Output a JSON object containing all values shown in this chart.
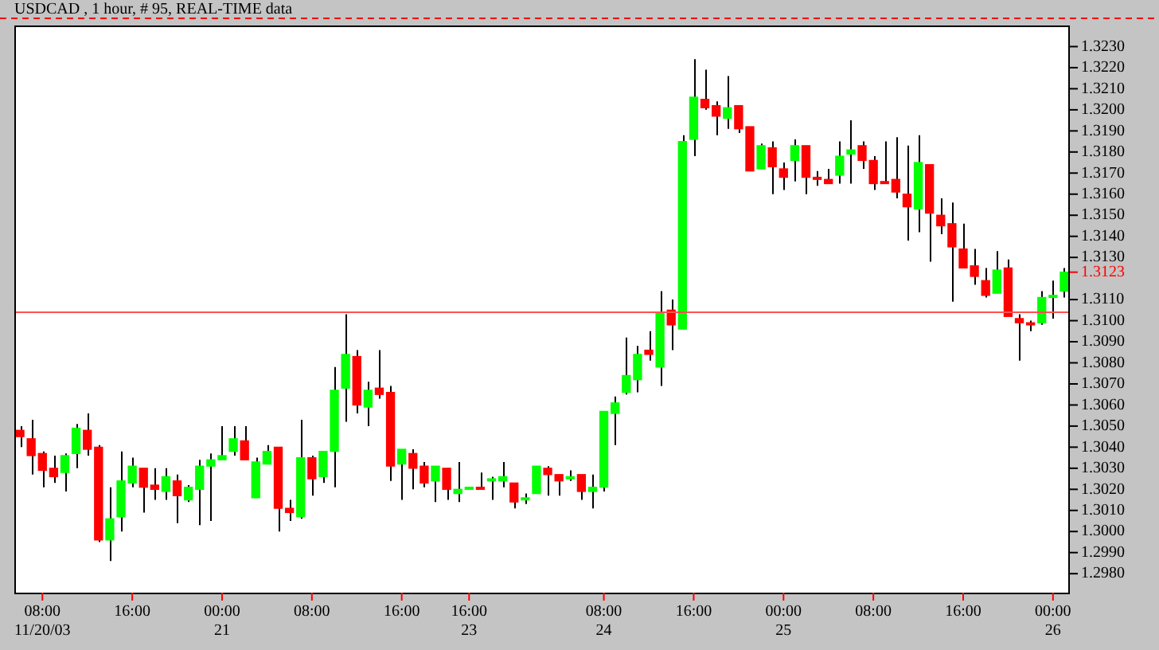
{
  "chart_data": {
    "type": "candlestick",
    "title": "USDCAD , 1 hour, # 95, REAL-TIME data",
    "categories": [
      null,
      null,
      "08:00\n11/20/03",
      null,
      null,
      null,
      null,
      null,
      null,
      null,
      "16:00",
      null,
      null,
      null,
      null,
      null,
      null,
      null,
      "00:00\n21",
      null,
      null,
      null,
      null,
      null,
      null,
      null,
      "08:00",
      null,
      null,
      null,
      null,
      null,
      null,
      null,
      "16:00",
      null,
      null,
      null,
      null,
      null,
      "16:00\n23",
      null,
      null,
      null,
      null,
      null,
      null,
      null,
      null,
      null,
      null,
      null,
      "08:00\n24",
      null,
      null,
      null,
      null,
      null,
      null,
      null,
      "16:00",
      null,
      null,
      null,
      null,
      null,
      null,
      null,
      "00:00\n25",
      null,
      null,
      null,
      null,
      null,
      null,
      null,
      "08:00",
      null,
      null,
      null,
      null,
      null,
      null,
      null,
      "16:00",
      null,
      null,
      null,
      null,
      null,
      null,
      null,
      "00:00\n26",
      null
    ],
    "ohlc": [
      [
        1.3048,
        1.305,
        1.304,
        1.3045
      ],
      [
        1.3044,
        1.3053,
        1.3027,
        1.3036
      ],
      [
        1.3037,
        1.3038,
        1.3021,
        1.3029
      ],
      [
        1.303,
        1.3036,
        1.3023,
        1.3026
      ],
      [
        1.3028,
        1.3037,
        1.3019,
        1.3036
      ],
      [
        1.3037,
        1.3051,
        1.303,
        1.3049
      ],
      [
        1.3048,
        1.3056,
        1.3036,
        1.3039
      ],
      [
        1.304,
        1.3041,
        1.2995,
        1.2996
      ],
      [
        1.2996,
        1.3021,
        1.2986,
        1.3006
      ],
      [
        1.3007,
        1.3038,
        1.3,
        1.3024
      ],
      [
        1.3023,
        1.3035,
        1.3021,
        1.3031
      ],
      [
        1.303,
        1.303,
        1.3009,
        1.3021
      ],
      [
        1.3022,
        1.303,
        1.3015,
        1.302
      ],
      [
        1.3019,
        1.303,
        1.3015,
        1.3026
      ],
      [
        1.3024,
        1.3027,
        1.3004,
        1.3017
      ],
      [
        1.3015,
        1.3022,
        1.3014,
        1.3021
      ],
      [
        1.302,
        1.3034,
        1.3003,
        1.3031
      ],
      [
        1.3031,
        1.3037,
        1.3005,
        1.3034
      ],
      [
        1.3034,
        1.305,
        1.3034,
        1.3036
      ],
      [
        1.3038,
        1.305,
        1.3036,
        1.3044
      ],
      [
        1.3043,
        1.305,
        1.3034,
        1.3034
      ],
      [
        1.3016,
        1.3035,
        1.3016,
        1.3033
      ],
      [
        1.3032,
        1.3041,
        1.3032,
        1.3038
      ],
      [
        1.304,
        1.304,
        1.3,
        1.3011
      ],
      [
        1.3011,
        1.3015,
        1.3005,
        1.3009
      ],
      [
        1.3007,
        1.3053,
        1.3006,
        1.3035
      ],
      [
        1.3035,
        1.3036,
        1.3017,
        1.3025
      ],
      [
        1.3026,
        1.3038,
        1.3023,
        1.3038
      ],
      [
        1.3038,
        1.3078,
        1.3021,
        1.3067
      ],
      [
        1.3068,
        1.3103,
        1.3052,
        1.3084
      ],
      [
        1.3083,
        1.3086,
        1.3056,
        1.306
      ],
      [
        1.3059,
        1.3071,
        1.305,
        1.3067
      ],
      [
        1.3068,
        1.3086,
        1.3063,
        1.3065
      ],
      [
        1.3066,
        1.3069,
        1.3024,
        1.3031
      ],
      [
        1.3032,
        1.3039,
        1.3015,
        1.3039
      ],
      [
        1.3037,
        1.3039,
        1.302,
        1.303
      ],
      [
        1.3031,
        1.3033,
        1.3021,
        1.3023
      ],
      [
        1.3024,
        1.3031,
        1.3014,
        1.3031
      ],
      [
        1.303,
        1.303,
        1.3015,
        1.302
      ],
      [
        1.3018,
        1.3033,
        1.3014,
        1.302
      ],
      [
        1.302,
        1.3021,
        1.302,
        1.3021
      ],
      [
        1.3021,
        1.3028,
        1.302,
        1.302
      ],
      [
        1.3024,
        1.3026,
        1.3015,
        1.3025
      ],
      [
        1.3024,
        1.3033,
        1.3021,
        1.3026
      ],
      [
        1.3023,
        1.3023,
        1.3011,
        1.3014
      ],
      [
        1.3015,
        1.3018,
        1.3013,
        1.3016
      ],
      [
        1.3018,
        1.3031,
        1.3018,
        1.3031
      ],
      [
        1.303,
        1.3031,
        1.3017,
        1.3027
      ],
      [
        1.3027,
        1.3027,
        1.3017,
        1.3024
      ],
      [
        1.3025,
        1.3029,
        1.3024,
        1.3026
      ],
      [
        1.3027,
        1.3027,
        1.3015,
        1.3019
      ],
      [
        1.3019,
        1.3027,
        1.3011,
        1.3021
      ],
      [
        1.3021,
        1.3057,
        1.3019,
        1.3057
      ],
      [
        1.3056,
        1.3064,
        1.3041,
        1.3061
      ],
      [
        1.3066,
        1.3092,
        1.3065,
        1.3074
      ],
      [
        1.3072,
        1.3088,
        1.3066,
        1.3084
      ],
      [
        1.3086,
        1.3095,
        1.3081,
        1.3084
      ],
      [
        1.3078,
        1.3114,
        1.3069,
        1.3104
      ],
      [
        1.3105,
        1.311,
        1.3086,
        1.3098
      ],
      [
        1.3096,
        1.3188,
        1.3096,
        1.3185
      ],
      [
        1.3186,
        1.3224,
        1.3178,
        1.3206
      ],
      [
        1.3205,
        1.3219,
        1.32,
        1.3201
      ],
      [
        1.3202,
        1.3204,
        1.3188,
        1.3197
      ],
      [
        1.3196,
        1.3216,
        1.3191,
        1.3201
      ],
      [
        1.3202,
        1.3202,
        1.3189,
        1.3191
      ],
      [
        1.3192,
        1.3192,
        1.3171,
        1.3171
      ],
      [
        1.3172,
        1.3184,
        1.3172,
        1.3183
      ],
      [
        1.3182,
        1.3185,
        1.316,
        1.3173
      ],
      [
        1.3172,
        1.3175,
        1.3162,
        1.3168
      ],
      [
        1.3176,
        1.3186,
        1.3166,
        1.3183
      ],
      [
        1.3183,
        1.3183,
        1.316,
        1.3168
      ],
      [
        1.3168,
        1.3171,
        1.3164,
        1.3167
      ],
      [
        1.3167,
        1.3172,
        1.3165,
        1.3165
      ],
      [
        1.3169,
        1.3185,
        1.3165,
        1.3178
      ],
      [
        1.3179,
        1.3195,
        1.3165,
        1.3181
      ],
      [
        1.3183,
        1.3185,
        1.3172,
        1.3176
      ],
      [
        1.3176,
        1.3178,
        1.3162,
        1.3165
      ],
      [
        1.3166,
        1.3185,
        1.3165,
        1.3165
      ],
      [
        1.3167,
        1.3187,
        1.3158,
        1.3161
      ],
      [
        1.316,
        1.3183,
        1.3138,
        1.3154
      ],
      [
        1.3153,
        1.3188,
        1.3142,
        1.3175
      ],
      [
        1.3174,
        1.3174,
        1.3128,
        1.3151
      ],
      [
        1.315,
        1.3158,
        1.3141,
        1.3145
      ],
      [
        1.3146,
        1.3156,
        1.3109,
        1.3135
      ],
      [
        1.3134,
        1.3146,
        1.3125,
        1.3125
      ],
      [
        1.3126,
        1.3134,
        1.3117,
        1.3121
      ],
      [
        1.3119,
        1.3125,
        1.3111,
        1.3112
      ],
      [
        1.3113,
        1.3133,
        1.3113,
        1.3124
      ],
      [
        1.3125,
        1.3129,
        1.3102,
        1.3102
      ],
      [
        1.3101,
        1.3103,
        1.3081,
        1.3099
      ],
      [
        1.3099,
        1.31,
        1.3095,
        1.3098
      ],
      [
        1.3099,
        1.3114,
        1.3098,
        1.3111
      ],
      [
        1.3111,
        1.3119,
        1.3101,
        1.3112
      ],
      [
        1.3114,
        1.3125,
        1.3111,
        1.3123
      ]
    ],
    "colors": [
      "#ff0000",
      "#ff0000",
      "#ff0000",
      "#ff0000",
      "#00ff00",
      "#00ff00",
      "#ff0000",
      "#ff0000",
      "#00ff00",
      "#00ff00",
      "#00ff00",
      "#ff0000",
      "#ff0000",
      "#00ff00",
      "#ff0000",
      "#00ff00",
      "#00ff00",
      "#00ff00",
      "#00ff00",
      "#00ff00",
      "#ff0000",
      "#00ff00",
      "#00ff00",
      "#ff0000",
      "#ff0000",
      "#00ff00",
      "#ff0000",
      "#00ff00",
      "#00ff00",
      "#00ff00",
      "#ff0000",
      "#00ff00",
      "#ff0000",
      "#ff0000",
      "#00ff00",
      "#ff0000",
      "#ff0000",
      "#00ff00",
      "#ff0000",
      "#00ff00",
      "#00ff00",
      "#ff0000",
      "#00ff00",
      "#00ff00",
      "#ff0000",
      "#00ff00",
      "#00ff00",
      "#ff0000",
      "#ff0000",
      "#00ff00",
      "#ff0000",
      "#00ff00",
      "#00ff00",
      "#00ff00",
      "#00ff00",
      "#00ff00",
      "#ff0000",
      "#00ff00",
      "#ff0000",
      "#00ff00",
      "#00ff00",
      "#ff0000",
      "#ff0000",
      "#00ff00",
      "#ff0000",
      "#ff0000",
      "#00ff00",
      "#ff0000",
      "#ff0000",
      "#00ff00",
      "#ff0000",
      "#ff0000",
      "#ff0000",
      "#00ff00",
      "#00ff00",
      "#ff0000",
      "#ff0000",
      "#ff0000",
      "#ff0000",
      "#ff0000",
      "#00ff00",
      "#ff0000",
      "#ff0000",
      "#ff0000",
      "#ff0000",
      "#ff0000",
      "#ff0000",
      "#00ff00",
      "#ff0000",
      "#ff0000",
      "#ff0000",
      "#00ff00",
      "#00ff00",
      "#00ff00"
    ],
    "ylim": [
      1.2971,
      1.324
    ],
    "yticks": [
      {
        "value": 1.298,
        "label": "1.2980"
      },
      {
        "value": 1.299,
        "label": "1.2990"
      },
      {
        "value": 1.3,
        "label": "1.3000"
      },
      {
        "value": 1.301,
        "label": "1.3010"
      },
      {
        "value": 1.302,
        "label": "1.3020"
      },
      {
        "value": 1.303,
        "label": "1.3030"
      },
      {
        "value": 1.304,
        "label": "1.3040"
      },
      {
        "value": 1.305,
        "label": "1.3050"
      },
      {
        "value": 1.306,
        "label": "1.3060"
      },
      {
        "value": 1.307,
        "label": "1.3070"
      },
      {
        "value": 1.308,
        "label": "1.3080"
      },
      {
        "value": 1.309,
        "label": "1.3090"
      },
      {
        "value": 1.31,
        "label": "1.3100"
      },
      {
        "value": 1.311,
        "label": "1.3110"
      },
      {
        "value": 1.3123,
        "label": "1.3123"
      },
      {
        "value": 1.313,
        "label": "1.3130"
      },
      {
        "value": 1.314,
        "label": "1.3140"
      },
      {
        "value": 1.315,
        "label": "1.3150"
      },
      {
        "value": 1.316,
        "label": "1.3160"
      },
      {
        "value": 1.317,
        "label": "1.3170"
      },
      {
        "value": 1.318,
        "label": "1.3180"
      },
      {
        "value": 1.319,
        "label": "1.3190"
      },
      {
        "value": 1.32,
        "label": "1.3200"
      },
      {
        "value": 1.321,
        "label": "1.3210"
      },
      {
        "value": 1.322,
        "label": "1.3220"
      },
      {
        "value": 1.323,
        "label": "1.3230"
      }
    ],
    "ref_lines": [
      {
        "axis": "y",
        "value": 1.3104,
        "color": "#ff5050"
      }
    ],
    "grid": false,
    "legend": false
  }
}
